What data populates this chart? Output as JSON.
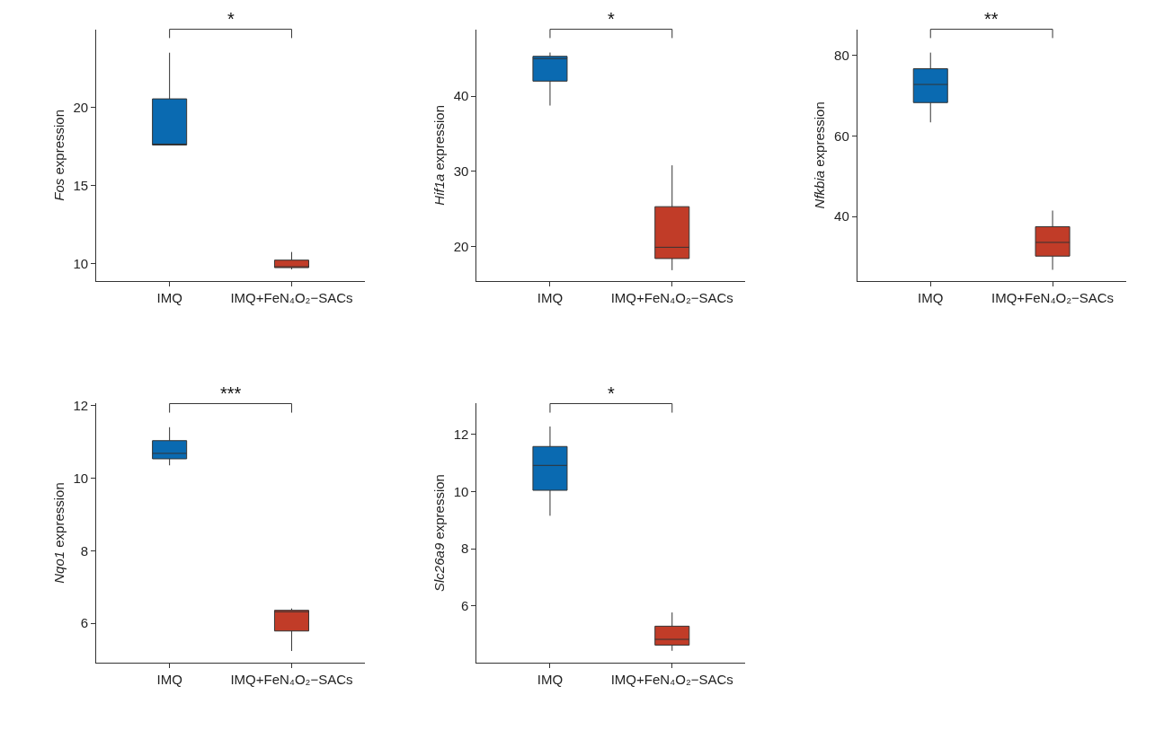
{
  "chart_data": [
    {
      "type": "box",
      "categories": [
        "IMQ",
        "IMQ+FeN₄O₂−SACs"
      ],
      "colors": [
        "#0a6ab1",
        "#c13c28"
      ],
      "ylabel": "Fos expression",
      "ylim": [
        8.9,
        25
      ],
      "yticks": [
        10,
        15,
        20
      ],
      "annotations": [
        "*"
      ],
      "boxes": [
        {
          "low": 17.6,
          "q1": 17.6,
          "median": 17.6,
          "q3": 20.55,
          "high": 23.5
        },
        {
          "low": 9.65,
          "q1": 9.76,
          "median": 9.76,
          "q3": 10.24,
          "high": 10.76
        }
      ]
    },
    {
      "type": "box",
      "categories": [
        "IMQ",
        "IMQ+FeN₄O₂−SACs"
      ],
      "colors": [
        "#0a6ab1",
        "#c13c28"
      ],
      "ylabel": "Hif1a expression",
      "ylim": [
        15.4,
        48.9
      ],
      "yticks": [
        20,
        30,
        40
      ],
      "annotations": [
        "*"
      ],
      "boxes": [
        {
          "low": 38.75,
          "q1": 42.0,
          "median": 45.0,
          "q3": 45.3,
          "high": 45.8
        },
        {
          "low": 16.85,
          "q1": 18.4,
          "median": 19.9,
          "q3": 25.3,
          "high": 30.8
        }
      ]
    },
    {
      "type": "box",
      "categories": [
        "IMQ",
        "IMQ+FeN₄O₂−SACs"
      ],
      "colors": [
        "#0a6ab1",
        "#c13c28"
      ],
      "ylabel": "Nfkbia expression",
      "ylim": [
        24,
        86.5
      ],
      "yticks": [
        40,
        60,
        80
      ],
      "annotations": [
        "**"
      ],
      "boxes": [
        {
          "low": 63.4,
          "q1": 68.3,
          "median": 72.8,
          "q3": 76.7,
          "high": 80.7
        },
        {
          "low": 26.8,
          "q1": 30.2,
          "median": 33.6,
          "q3": 37.5,
          "high": 41.5
        }
      ]
    },
    {
      "type": "box",
      "categories": [
        "IMQ",
        "IMQ+FeN₄O₂−SACs"
      ],
      "colors": [
        "#0a6ab1",
        "#c13c28"
      ],
      "ylabel": "Nqo1 expression",
      "ylim": [
        4.93,
        12.05
      ],
      "yticks": [
        6,
        8,
        10,
        12
      ],
      "annotations": [
        "***"
      ],
      "boxes": [
        {
          "low": 10.35,
          "q1": 10.53,
          "median": 10.68,
          "q3": 11.03,
          "high": 11.4
        },
        {
          "low": 5.24,
          "q1": 5.79,
          "median": 6.32,
          "q3": 6.36,
          "high": 6.41
        }
      ]
    },
    {
      "type": "box",
      "categories": [
        "IMQ",
        "IMQ+FeN₄O₂−SACs"
      ],
      "colors": [
        "#0a6ab1",
        "#c13c28"
      ],
      "ylabel": "Slc26a9 expression",
      "ylim": [
        4.03,
        13.07
      ],
      "yticks": [
        6,
        8,
        10,
        12
      ],
      "annotations": [
        "*"
      ],
      "boxes": [
        {
          "low": 9.15,
          "q1": 10.04,
          "median": 10.91,
          "q3": 11.57,
          "high": 12.27
        },
        {
          "low": 4.43,
          "q1": 4.63,
          "median": 4.83,
          "q3": 5.29,
          "high": 5.77
        }
      ]
    }
  ]
}
